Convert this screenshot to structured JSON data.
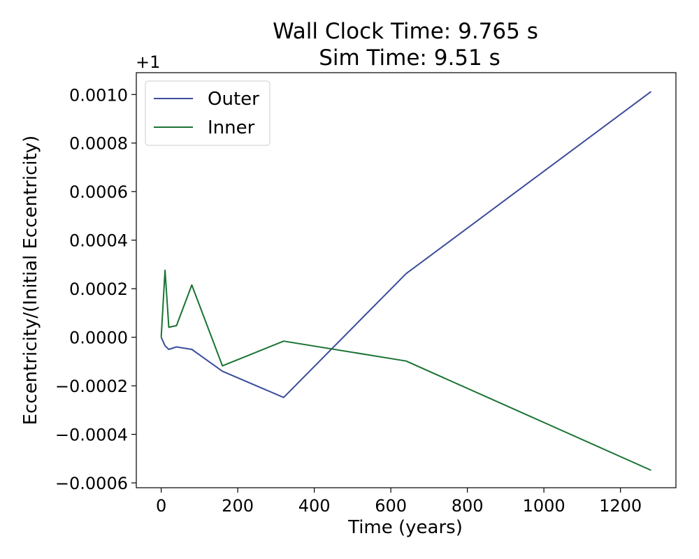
{
  "chart_data": {
    "type": "line",
    "title_line1": "Wall Clock Time: 9.765 s",
    "title_line2": "Sim Time: 9.51 s",
    "xlabel": "Time (years)",
    "ylabel": "Eccentricity/(Initial Eccentricity)",
    "y_offset_label": "+1",
    "xlim": [
      -65,
      1345
    ],
    "ylim": [
      -0.00062,
      0.00109
    ],
    "x_ticks": [
      0,
      200,
      400,
      600,
      800,
      1000,
      1200
    ],
    "x_tick_labels": [
      "0",
      "200",
      "400",
      "600",
      "800",
      "1000",
      "1200"
    ],
    "y_ticks": [
      -0.0006,
      -0.0004,
      -0.0002,
      0.0,
      0.0002,
      0.0004,
      0.0006,
      0.0008,
      0.001
    ],
    "y_tick_labels": [
      "−0.0006",
      "−0.0004",
      "−0.0002",
      "0.0000",
      "0.0002",
      "0.0004",
      "0.0006",
      "0.0008",
      "0.0010"
    ],
    "grid": false,
    "legend_position": "top-left",
    "series": [
      {
        "name": "Outer",
        "color": "#3a4d9a",
        "x": [
          0,
          10,
          20,
          40,
          80,
          160,
          320,
          640,
          1280
        ],
        "y": [
          0.0,
          -3.5e-05,
          -5e-05,
          -4e-05,
          -5e-05,
          -0.00014,
          -0.000248,
          0.000262,
          0.001012
        ]
      },
      {
        "name": "Inner",
        "color": "#1a7332",
        "x": [
          0,
          10,
          20,
          40,
          80,
          160,
          320,
          640,
          1280
        ],
        "y": [
          0.0,
          0.000276,
          4.1e-05,
          4.8e-05,
          0.000215,
          -0.000118,
          -1.6e-05,
          -9.8e-05,
          -0.000548
        ]
      }
    ]
  }
}
